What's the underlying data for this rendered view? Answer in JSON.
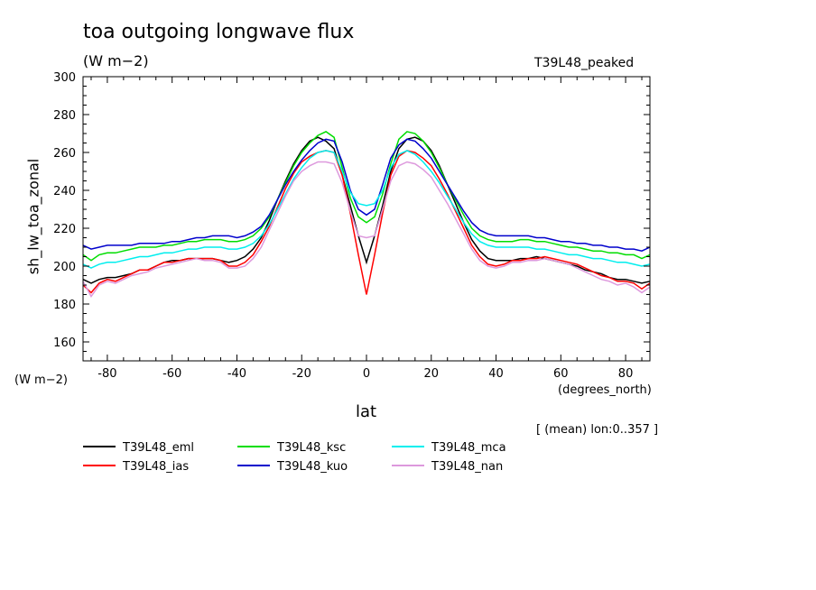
{
  "header": {
    "title": "toa outgoing longwave flux",
    "units": "(W m−2)",
    "experiment": "T39L48_peaked"
  },
  "footer": {
    "averaging_note": "[ (mean) lon:0..357 ]"
  },
  "chart_data": {
    "type": "line",
    "title": "toa outgoing longwave flux",
    "subtitle": "(W m−2)",
    "xlabel": "lat",
    "xunits": "(degrees_north)",
    "ylabel": "sh_lw_toa_zonal",
    "yunits": "(W m−2)",
    "xlim": [
      -87.5,
      87.5
    ],
    "ylim": [
      150,
      300
    ],
    "xticks": [
      -80,
      -60,
      -40,
      -20,
      0,
      20,
      40,
      60,
      80
    ],
    "yticks": [
      160,
      180,
      200,
      220,
      240,
      260,
      280,
      300
    ],
    "grid": false,
    "legend_position": "bottom",
    "x": [
      -87.5,
      -85,
      -82.5,
      -80,
      -77.5,
      -75,
      -72.5,
      -70,
      -67.5,
      -65,
      -62.5,
      -60,
      -57.5,
      -55,
      -52.5,
      -50,
      -47.5,
      -45,
      -42.5,
      -40,
      -37.5,
      -35,
      -32.5,
      -30,
      -27.5,
      -25,
      -22.5,
      -20,
      -17.5,
      -15,
      -12.5,
      -10,
      -7.5,
      -5,
      -2.5,
      0,
      2.5,
      5,
      7.5,
      10,
      12.5,
      15,
      17.5,
      20,
      22.5,
      25,
      27.5,
      30,
      32.5,
      35,
      37.5,
      40,
      42.5,
      45,
      47.5,
      50,
      52.5,
      55,
      57.5,
      60,
      62.5,
      65,
      67.5,
      70,
      72.5,
      75,
      77.5,
      80,
      82.5,
      85,
      87.5
    ],
    "series": [
      {
        "name": "T39L48_eml",
        "color": "#000000",
        "values": [
          193,
          191,
          193,
          194,
          194,
          195,
          196,
          198,
          198,
          200,
          202,
          203,
          203,
          204,
          204,
          204,
          204,
          203,
          202,
          203,
          205,
          209,
          215,
          224,
          235,
          245,
          254,
          261,
          266,
          268,
          266,
          262,
          248,
          232,
          216,
          202,
          216,
          232,
          250,
          262,
          267,
          268,
          266,
          261,
          253,
          243,
          233,
          223,
          214,
          208,
          204,
          203,
          203,
          203,
          204,
          204,
          205,
          204,
          203,
          202,
          201,
          200,
          198,
          197,
          196,
          194,
          193,
          193,
          192,
          191,
          192
        ]
      },
      {
        "name": "T39L48_ias",
        "color": "#ff0000",
        "values": [
          190,
          186,
          191,
          193,
          192,
          194,
          196,
          198,
          198,
          200,
          202,
          202,
          203,
          204,
          204,
          204,
          204,
          203,
          200,
          200,
          202,
          206,
          213,
          221,
          231,
          241,
          249,
          255,
          258,
          260,
          261,
          260,
          248,
          228,
          206,
          185,
          206,
          228,
          248,
          258,
          261,
          260,
          257,
          253,
          246,
          238,
          229,
          220,
          211,
          205,
          201,
          200,
          201,
          203,
          203,
          204,
          204,
          205,
          204,
          203,
          202,
          201,
          199,
          197,
          195,
          194,
          192,
          192,
          191,
          188,
          191
        ]
      },
      {
        "name": "T39L48_ksc",
        "color": "#00dd00",
        "values": [
          206,
          203,
          206,
          207,
          207,
          208,
          209,
          210,
          210,
          210,
          211,
          211,
          212,
          213,
          213,
          214,
          214,
          214,
          213,
          213,
          214,
          216,
          220,
          226,
          235,
          244,
          253,
          260,
          265,
          269,
          271,
          268,
          252,
          236,
          226,
          223,
          226,
          238,
          254,
          267,
          271,
          270,
          266,
          260,
          252,
          243,
          235,
          227,
          220,
          216,
          214,
          213,
          213,
          213,
          214,
          214,
          213,
          213,
          212,
          211,
          210,
          210,
          209,
          208,
          208,
          207,
          207,
          206,
          206,
          204,
          206
        ]
      },
      {
        "name": "T39L48_kuo",
        "color": "#0000cc",
        "values": [
          211,
          209,
          210,
          211,
          211,
          211,
          211,
          212,
          212,
          212,
          212,
          213,
          213,
          214,
          215,
          215,
          216,
          216,
          216,
          215,
          216,
          218,
          221,
          227,
          235,
          243,
          250,
          256,
          261,
          265,
          267,
          266,
          255,
          240,
          230,
          227,
          230,
          243,
          257,
          264,
          267,
          266,
          262,
          257,
          250,
          243,
          236,
          229,
          223,
          219,
          217,
          216,
          216,
          216,
          216,
          216,
          215,
          215,
          214,
          213,
          213,
          212,
          212,
          211,
          211,
          210,
          210,
          209,
          209,
          208,
          210
        ]
      },
      {
        "name": "T39L48_mca",
        "color": "#00eeee",
        "values": [
          201,
          199,
          201,
          202,
          202,
          203,
          204,
          205,
          205,
          206,
          207,
          207,
          208,
          209,
          209,
          210,
          210,
          210,
          209,
          209,
          210,
          212,
          216,
          222,
          230,
          238,
          246,
          252,
          257,
          260,
          261,
          260,
          250,
          239,
          233,
          232,
          233,
          240,
          252,
          259,
          261,
          259,
          255,
          250,
          244,
          237,
          230,
          223,
          217,
          213,
          211,
          210,
          210,
          210,
          210,
          210,
          209,
          209,
          208,
          207,
          206,
          206,
          205,
          204,
          204,
          203,
          202,
          202,
          201,
          200,
          201
        ]
      },
      {
        "name": "T39L48_nan",
        "color": "#dd99dd",
        "values": [
          192,
          184,
          190,
          192,
          191,
          193,
          195,
          196,
          197,
          199,
          200,
          201,
          202,
          203,
          204,
          203,
          203,
          202,
          199,
          199,
          200,
          204,
          210,
          219,
          228,
          237,
          245,
          250,
          253,
          255,
          255,
          254,
          244,
          229,
          216,
          215,
          216,
          230,
          245,
          253,
          255,
          254,
          251,
          247,
          240,
          233,
          225,
          217,
          209,
          203,
          200,
          199,
          200,
          202,
          202,
          203,
          203,
          204,
          203,
          202,
          201,
          199,
          197,
          195,
          193,
          192,
          190,
          191,
          189,
          186,
          189
        ]
      }
    ]
  }
}
